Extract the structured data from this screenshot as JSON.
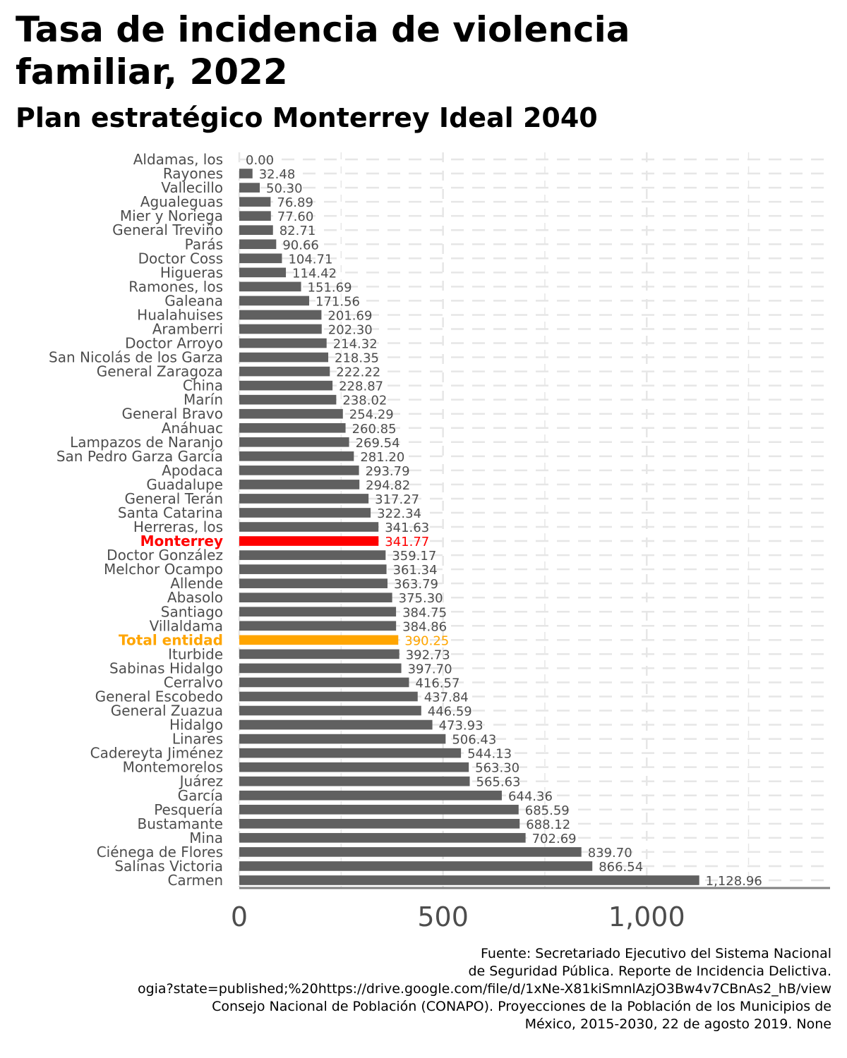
{
  "title": "Tasa de incidencia de violencia familiar, 2022",
  "subtitle": "Plan estratégico Monterrey Ideal 2040",
  "source_lines": [
    "Fuente: Secretariado Ejecutivo del Sistema Nacional",
    "de Seguridad Pública. Reporte de Incidencia Delictiva.",
    "ogia?state=published;%20https://drive.google.com/file/d/1xNe-X81kiSmnlAzjO3Bw4v7CBnAs2_hB/view",
    "Consejo Nacional de Población (CONAPO). Proyecciones de la Población de los Municipios de",
    "México, 2015-2030, 22 de agosto 2019. None"
  ],
  "colors": {
    "default_bar": "#606060",
    "monterrey": "#ff0000",
    "total": "#ffa500",
    "grid": "#e6e6e6",
    "axis": "#808080"
  },
  "chart_data": {
    "type": "bar",
    "orientation": "horizontal",
    "xlim": [
      0,
      1450
    ],
    "x_ticks": [
      0,
      500,
      1000
    ],
    "x_tick_labels": [
      "0",
      "500",
      "1,000"
    ],
    "grid": true,
    "categories": [
      "Aldamas, los",
      "Rayones",
      "Vallecillo",
      "Agualeguas",
      "Mier y Noriega",
      "General Treviño",
      "Parás",
      "Doctor Coss",
      "Higueras",
      "Ramones, los",
      "Galeana",
      "Hualahuises",
      "Aramberri",
      "Doctor Arroyo",
      "San Nicolás de los Garza",
      "General Zaragoza",
      "China",
      "Marín",
      "General Bravo",
      "Anáhuac",
      "Lampazos de Naranjo",
      "San Pedro Garza García",
      "Apodaca",
      "Guadalupe",
      "General Terán",
      "Santa Catarina",
      "Herreras, los",
      "Monterrey",
      "Doctor González",
      "Melchor Ocampo",
      "Allende",
      "Abasolo",
      "Santiago",
      "Villaldama",
      "Total entidad",
      "Iturbide",
      "Sabinas Hidalgo",
      "Cerralvo",
      "General Escobedo",
      "General Zuazua",
      "Hidalgo",
      "Linares",
      "Cadereyta Jiménez",
      "Montemorelos",
      "Juárez",
      "García",
      "Pesquería",
      "Bustamante",
      "Mina",
      "Ciénega de Flores",
      "Salinas Victoria",
      "Carmen"
    ],
    "values": [
      0.0,
      32.48,
      50.3,
      76.89,
      77.6,
      82.71,
      90.66,
      104.71,
      114.42,
      151.69,
      171.56,
      201.69,
      202.3,
      214.32,
      218.35,
      222.22,
      228.87,
      238.02,
      254.29,
      260.85,
      269.54,
      281.2,
      293.79,
      294.82,
      317.27,
      322.34,
      341.63,
      341.77,
      359.17,
      361.34,
      363.79,
      375.3,
      384.75,
      384.86,
      390.25,
      392.73,
      397.7,
      416.57,
      437.84,
      446.59,
      473.93,
      506.43,
      544.13,
      563.3,
      565.63,
      644.36,
      685.59,
      688.12,
      702.69,
      839.7,
      866.54,
      1128.96
    ],
    "value_labels": [
      "0.00",
      "32.48",
      "50.30",
      "76.89",
      "77.60",
      "82.71",
      "90.66",
      "104.71",
      "114.42",
      "151.69",
      "171.56",
      "201.69",
      "202.30",
      "214.32",
      "218.35",
      "222.22",
      "228.87",
      "238.02",
      "254.29",
      "260.85",
      "269.54",
      "281.20",
      "293.79",
      "294.82",
      "317.27",
      "322.34",
      "341.63",
      "341.77",
      "359.17",
      "361.34",
      "363.79",
      "375.30",
      "384.75",
      "384.86",
      "390.25",
      "392.73",
      "397.70",
      "416.57",
      "437.84",
      "446.59",
      "473.93",
      "506.43",
      "544.13",
      "563.30",
      "565.63",
      "644.36",
      "685.59",
      "688.12",
      "702.69",
      "839.70",
      "866.54",
      "1,128.96"
    ],
    "highlights": {
      "Monterrey": "monterrey",
      "Total entidad": "total"
    }
  }
}
